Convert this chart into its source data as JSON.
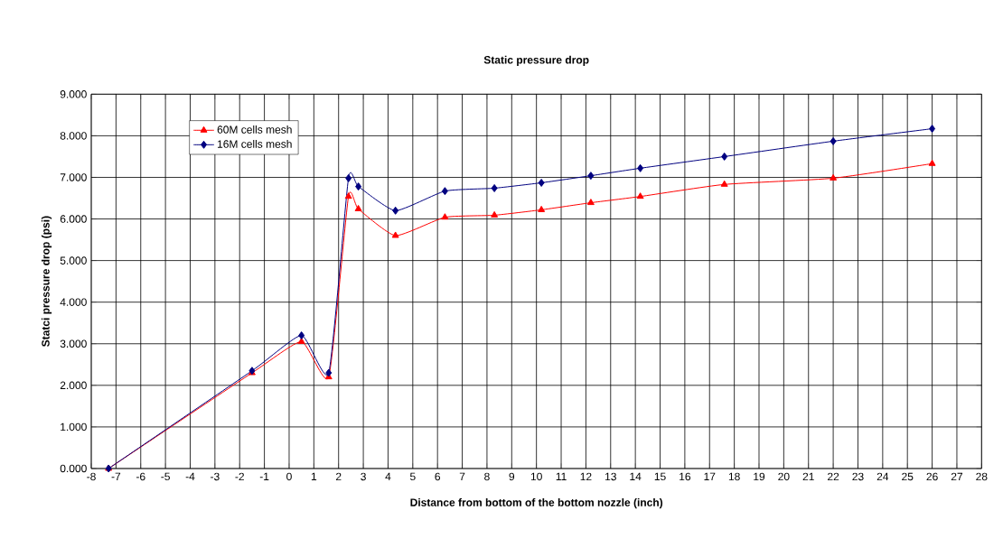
{
  "chart_data": {
    "type": "line",
    "title": "Static pressure drop",
    "xlabel": "Distance from bottom of the bottom nozzle (inch)",
    "ylabel": "Statci pressure drop (psi)",
    "x": [
      -7.3,
      -1.5,
      0.5,
      1.6,
      2.4,
      2.8,
      4.3,
      6.3,
      8.3,
      10.2,
      12.2,
      14.2,
      17.6,
      22,
      26
    ],
    "series": [
      {
        "name": "60M cells mesh",
        "color": "#ff0000",
        "marker": "triangle",
        "values": [
          0,
          2.3,
          3.05,
          2.2,
          6.54,
          6.24,
          5.6,
          6.04,
          6.09,
          6.22,
          6.39,
          6.54,
          6.83,
          6.98,
          7.33
        ]
      },
      {
        "name": "16M cells mesh",
        "color": "#000080",
        "marker": "diamond",
        "values": [
          0,
          2.35,
          3.2,
          2.3,
          6.98,
          6.78,
          6.2,
          6.67,
          6.74,
          6.87,
          7.04,
          7.22,
          7.5,
          7.87,
          8.17
        ]
      }
    ],
    "xlim": [
      -8,
      28
    ],
    "xticks": [
      -8,
      -7,
      -6,
      -5,
      -4,
      -3,
      -2,
      -1,
      0,
      1,
      2,
      3,
      4,
      5,
      6,
      7,
      8,
      9,
      10,
      11,
      12,
      13,
      14,
      15,
      16,
      17,
      18,
      19,
      20,
      21,
      22,
      23,
      24,
      25,
      26,
      27,
      28
    ],
    "ylim": [
      0,
      9
    ],
    "yticks": [
      {
        "value": 0,
        "label": "0.000"
      },
      {
        "value": 1,
        "label": "1.000"
      },
      {
        "value": 2,
        "label": "2.000"
      },
      {
        "value": 3,
        "label": "3.000"
      },
      {
        "value": 4,
        "label": "4.000"
      },
      {
        "value": 5,
        "label": "5.000"
      },
      {
        "value": 6,
        "label": "6.000"
      },
      {
        "value": 7,
        "label": "7.000"
      },
      {
        "value": 8,
        "label": "8.000"
      },
      {
        "value": 9,
        "label": "9.000"
      }
    ],
    "grid": true,
    "legend": "top left",
    "line_style": "solid"
  }
}
